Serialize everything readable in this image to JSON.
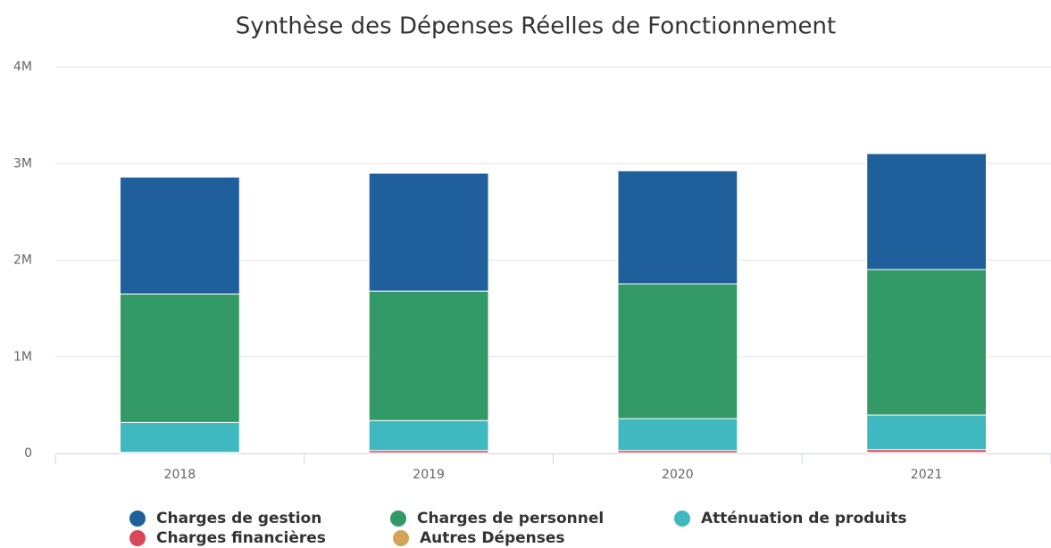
{
  "chart_data": {
    "type": "stacked_bar",
    "title": "Synthèse des Dépenses Réelles de Fonctionnement",
    "categories": [
      "2018",
      "2019",
      "2020",
      "2021"
    ],
    "series": [
      {
        "name": "Charges de gestion",
        "color": "#1f5f9c",
        "values": [
          1210000,
          1220000,
          1170000,
          1200000
        ]
      },
      {
        "name": "Charges de personnel",
        "color": "#339966",
        "values": [
          1330000,
          1340000,
          1395000,
          1506000
        ]
      },
      {
        "name": "Atténuation de produits",
        "color": "#40b8c0",
        "values": [
          310000,
          310000,
          330000,
          357000
        ]
      },
      {
        "name": "Charges financières",
        "color": "#d9475a",
        "values": [
          5000,
          25000,
          25000,
          30000
        ]
      },
      {
        "name": "Autres Dépenses",
        "color": "#d4a35a",
        "values": [
          5000,
          5000,
          5000,
          10000
        ]
      }
    ],
    "ylim": [
      0,
      4000000
    ],
    "yticks": [
      0,
      {
        "value": 1000000,
        "label": "1M"
      },
      {
        "value": 2000000,
        "label": "2M"
      },
      {
        "value": 3000000,
        "label": "3M"
      },
      {
        "value": 4000000,
        "label": "4M"
      }
    ],
    "grid": true,
    "legend": "bottom"
  }
}
